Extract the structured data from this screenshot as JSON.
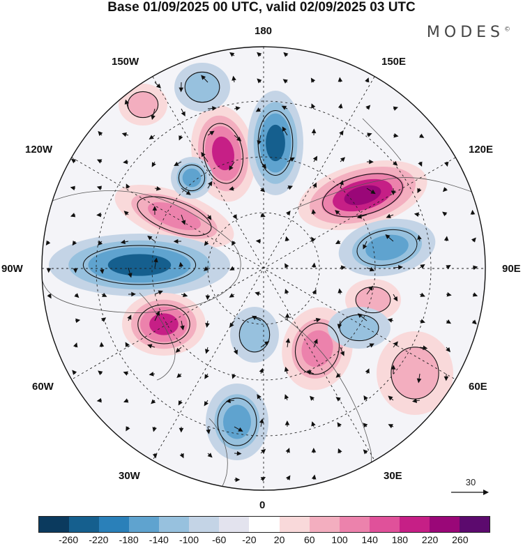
{
  "title": "Base 01/09/2025 00 UTC, valid 02/09/2025 03 UTC",
  "brand": "MODES",
  "brand_mark": "©",
  "longitude_labels": {
    "top": "180",
    "upper_left": "150W",
    "upper_right": "150E",
    "mid_upper_left": "120W",
    "mid_upper_right": "120E",
    "left": "90W",
    "right": "90E",
    "mid_lower_left": "60W",
    "mid_lower_right": "60E",
    "lower_left": "30W",
    "lower_right": "30E",
    "bottom": "0"
  },
  "reference_vector": {
    "label": "30"
  },
  "colorbar": {
    "colors": [
      "#0b3a5e",
      "#155f8e",
      "#2a80b9",
      "#5fa3cf",
      "#97c1de",
      "#c4d4e6",
      "#e3e3ee",
      "#ffffff",
      "#f9d9da",
      "#f3aebf",
      "#ec82ac",
      "#e0519a",
      "#c61f86",
      "#9a0778",
      "#5c0a6e"
    ],
    "labels": [
      "-260",
      "-220",
      "-180",
      "-140",
      "-100",
      "-60",
      "-20",
      "20",
      "60",
      "100",
      "140",
      "180",
      "220",
      "260"
    ]
  },
  "anomaly_palette": {
    "neg_strong": "#155f8e",
    "neg_mid": "#5fa3cf",
    "neg_light": "#97c1de",
    "neg_faint": "#c4d4e6",
    "neutral": "#e3e3ee",
    "pos_faint": "#f9d9da",
    "pos_light": "#f3aebf",
    "pos_mid": "#ec82ac",
    "pos_strong": "#c61f86",
    "pos_max": "#9a0778"
  }
}
